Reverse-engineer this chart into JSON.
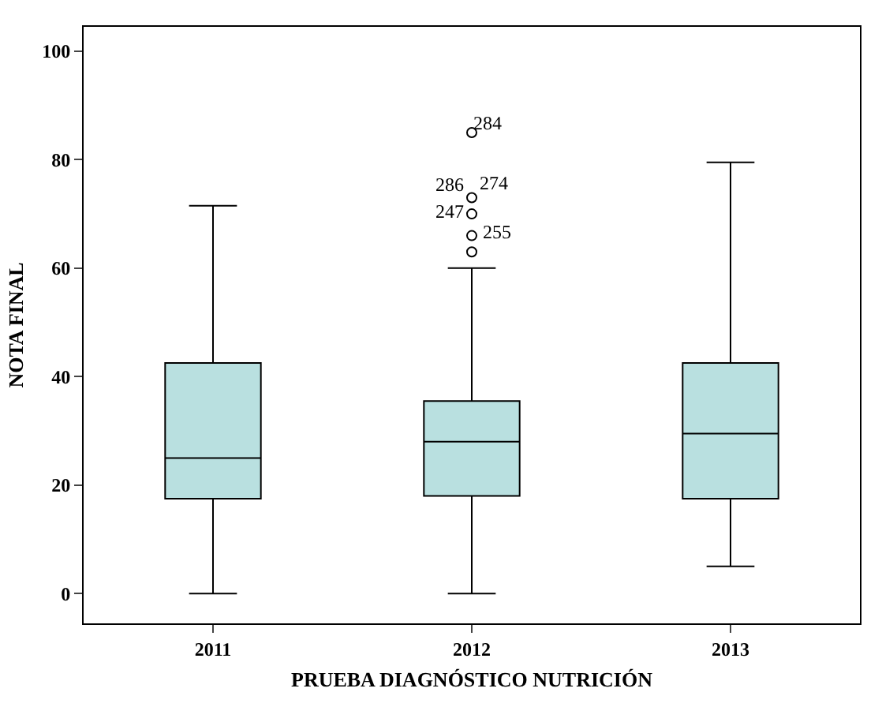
{
  "chart_data": {
    "type": "box",
    "xlabel": "PRUEBA DIAGNÓSTICO NUTRICIÓN",
    "ylabel": "NOTA FINAL",
    "categories": [
      "2011",
      "2012",
      "2013"
    ],
    "color": "#b9e0e0",
    "boxes": [
      {
        "low": 0,
        "q1": 17.5,
        "median": 25,
        "q3": 42.5,
        "high": 71.5
      },
      {
        "low": 0,
        "q1": 18,
        "median": 28,
        "q3": 35.5,
        "high": 60,
        "outliers": [
          85,
          73,
          70,
          66,
          63
        ]
      },
      {
        "low": 5,
        "q1": 17.5,
        "median": 29.5,
        "q3": 42.5,
        "high": 79.5
      }
    ],
    "ylim": [
      -5.5,
      104.5
    ],
    "yticks": [
      0,
      20,
      40,
      60,
      80,
      100
    ],
    "grid": false,
    "annotations": [
      "284",
      "286",
      "274",
      "247",
      "255"
    ]
  }
}
